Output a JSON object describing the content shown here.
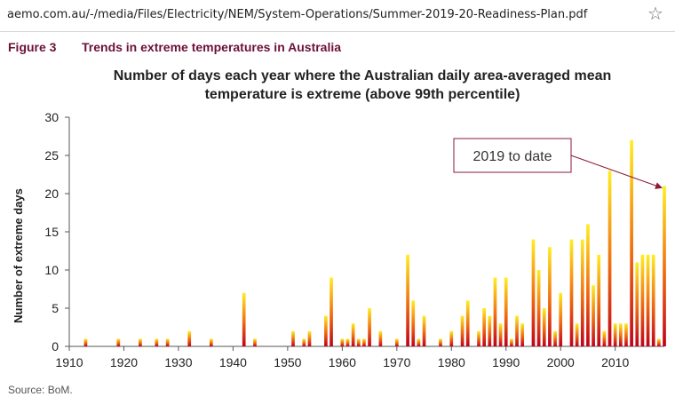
{
  "browser": {
    "url": "aemo.com.au/-/media/Files/Electricity/NEM/System-Operations/Summer-2019-20-Readiness-Plan.pdf",
    "bookmark_icon": "star-outline-icon"
  },
  "figure": {
    "number": "Figure 3",
    "caption": "Trends in extreme temperatures in Australia",
    "source": "Source: BoM."
  },
  "chart_data": {
    "type": "bar",
    "title_lines": [
      "Number of days each year where the Australian daily area-averaged mean",
      "temperature is extreme (above 99th percentile)"
    ],
    "xlabel": "",
    "ylabel": "Number of extreme days",
    "xlim": [
      1910,
      2019
    ],
    "ylim": [
      0,
      30
    ],
    "xticks": [
      1910,
      1920,
      1930,
      1940,
      1950,
      1960,
      1970,
      1980,
      1990,
      2000,
      2010
    ],
    "yticks": [
      0,
      5,
      10,
      15,
      20,
      25,
      30
    ],
    "grid": false,
    "bar_gradient": [
      "#c0001a",
      "#ffee22"
    ],
    "annotation": {
      "text": "2019 to date",
      "target_year": 2019,
      "target_value": 21,
      "border_color": "#8b1a3a",
      "arrow_color": "#8b1a3a"
    },
    "x": [
      1913,
      1919,
      1923,
      1926,
      1928,
      1932,
      1936,
      1942,
      1944,
      1951,
      1953,
      1954,
      1957,
      1958,
      1960,
      1961,
      1962,
      1963,
      1964,
      1965,
      1967,
      1970,
      1972,
      1973,
      1974,
      1975,
      1978,
      1980,
      1982,
      1983,
      1985,
      1986,
      1987,
      1988,
      1989,
      1990,
      1991,
      1992,
      1993,
      1995,
      1996,
      1997,
      1998,
      1999,
      2000,
      2002,
      2003,
      2004,
      2005,
      2006,
      2007,
      2008,
      2009,
      2010,
      2011,
      2012,
      2013,
      2014,
      2015,
      2016,
      2017,
      2018,
      2019
    ],
    "values": [
      1,
      1,
      1,
      1,
      1,
      2,
      1,
      7,
      1,
      2,
      1,
      2,
      4,
      9,
      1,
      1,
      3,
      1,
      1,
      5,
      2,
      1,
      12,
      6,
      1,
      4,
      1,
      2,
      4,
      6,
      2,
      5,
      4,
      9,
      3,
      9,
      1,
      4,
      3,
      14,
      10,
      5,
      13,
      2,
      7,
      14,
      3,
      14,
      16,
      8,
      12,
      2,
      23,
      3,
      3,
      3,
      27,
      11,
      12,
      12,
      12,
      1,
      21
    ]
  }
}
